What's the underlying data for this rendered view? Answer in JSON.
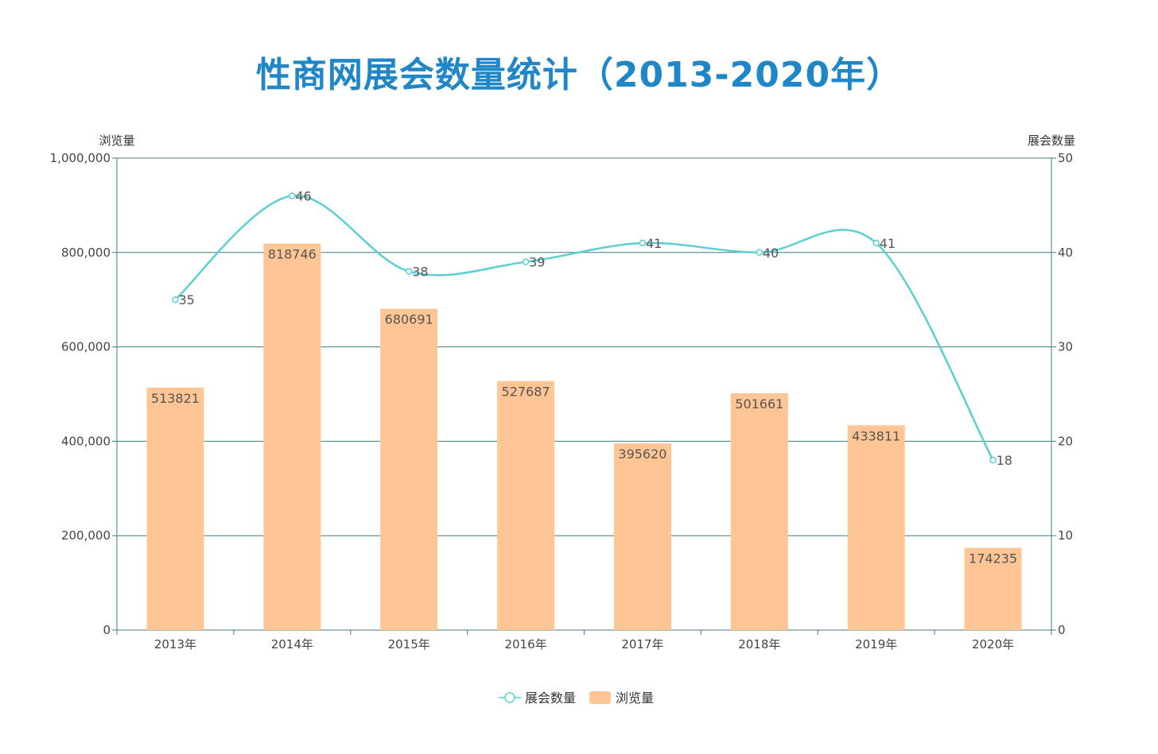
{
  "title": "性商网展会数量统计（2013-2020年）",
  "chart_data": {
    "type": "bar",
    "categories": [
      "2013年",
      "2014年",
      "2015年",
      "2016年",
      "2017年",
      "2018年",
      "2019年",
      "2020年"
    ],
    "series": [
      {
        "name": "浏览量",
        "type": "bar",
        "axis": "left",
        "color": "#ffc594",
        "values": [
          513821,
          818746,
          680691,
          527687,
          395620,
          501661,
          433811,
          174235
        ]
      },
      {
        "name": "展会数量",
        "type": "line",
        "axis": "right",
        "color": "#5bcfd1",
        "smooth": true,
        "values": [
          35,
          46,
          38,
          39,
          41,
          40,
          41,
          18
        ]
      }
    ],
    "y_left": {
      "label": "浏览量",
      "range": [
        0,
        1000000
      ],
      "ticks": [
        "0",
        "200,000",
        "400,000",
        "600,000",
        "800,000",
        "1,000,000"
      ]
    },
    "y_right": {
      "label": "展会数量",
      "range": [
        0,
        50
      ],
      "ticks": [
        "0",
        "10",
        "20",
        "30",
        "40",
        "50"
      ]
    },
    "grid": true,
    "legend": {
      "position": "bottom",
      "items": [
        "展会数量",
        "浏览量"
      ]
    }
  }
}
